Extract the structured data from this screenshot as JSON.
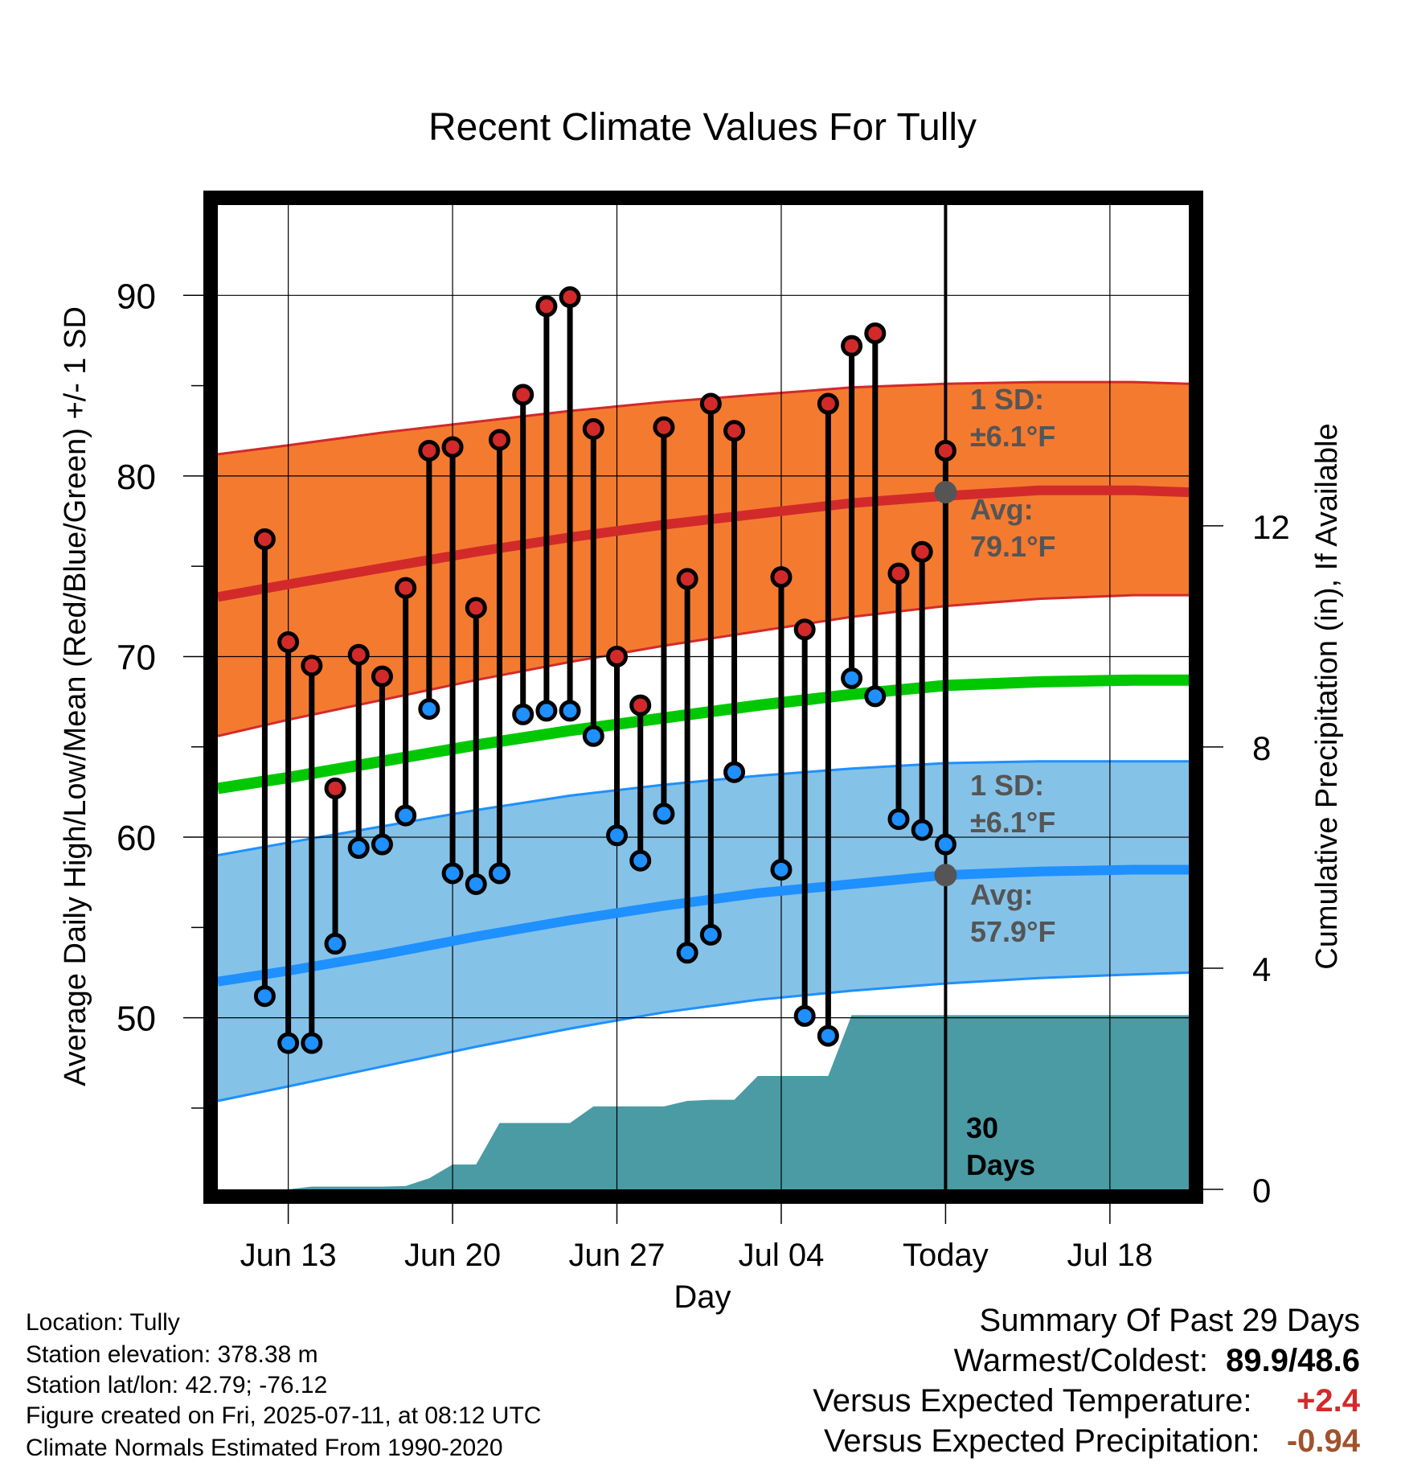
{
  "chart_data": {
    "type": "line",
    "title": "Recent Climate Values For Tully",
    "xlabel": "Day",
    "ylabel": "Average Daily High/Low/Mean (Red/Blue/Green) +/- 1 SD",
    "y2label": "Cumulative Precipitation (in), If Available",
    "ylim": [
      40.5,
      95
    ],
    "y2lim": [
      0,
      17.8
    ],
    "yticks": [
      "50",
      "60",
      "70",
      "80",
      "90"
    ],
    "y2ticks": [
      "0",
      "4",
      "8",
      "12"
    ],
    "xticks": [
      "Jun 13",
      "Jun 20",
      "Jun 27",
      "Jul 04",
      "Today",
      "Jul 18"
    ],
    "grid": true,
    "days": [
      {
        "date": "Jun 12",
        "high": 76.5,
        "low": 51.2
      },
      {
        "date": "Jun 13",
        "high": 70.8,
        "low": 48.6
      },
      {
        "date": "Jun 14",
        "high": 69.5,
        "low": 48.6
      },
      {
        "date": "Jun 15",
        "high": 62.7,
        "low": 54.1
      },
      {
        "date": "Jun 16",
        "high": 70.1,
        "low": 59.4
      },
      {
        "date": "Jun 17",
        "high": 68.9,
        "low": 59.6
      },
      {
        "date": "Jun 18",
        "high": 73.8,
        "low": 61.2
      },
      {
        "date": "Jun 19",
        "high": 81.4,
        "low": 67.1
      },
      {
        "date": "Jun 20",
        "high": 81.6,
        "low": 58.0
      },
      {
        "date": "Jun 21",
        "high": 72.7,
        "low": 57.4
      },
      {
        "date": "Jun 22",
        "high": 82.0,
        "low": 58.0
      },
      {
        "date": "Jun 23",
        "high": 84.5,
        "low": 66.8
      },
      {
        "date": "Jun 24",
        "high": 89.4,
        "low": 67.0
      },
      {
        "date": "Jun 25",
        "high": 89.9,
        "low": 67.0
      },
      {
        "date": "Jun 26",
        "high": 82.6,
        "low": 65.6
      },
      {
        "date": "Jun 27",
        "high": 70.0,
        "low": 60.1
      },
      {
        "date": "Jun 28",
        "high": 67.3,
        "low": 58.7
      },
      {
        "date": "Jun 29",
        "high": 82.7,
        "low": 61.3
      },
      {
        "date": "Jun 30",
        "high": 74.3,
        "low": 53.6
      },
      {
        "date": "Jul 01",
        "high": 84.0,
        "low": 54.6
      },
      {
        "date": "Jul 02",
        "high": 82.5,
        "low": 63.6
      },
      {
        "date": "Jul 04",
        "high": 74.4,
        "low": 58.2
      },
      {
        "date": "Jul 05",
        "high": 71.5,
        "low": 50.1
      },
      {
        "date": "Jul 06",
        "high": 84.0,
        "low": 49.0
      },
      {
        "date": "Jul 07",
        "high": 87.2,
        "low": 68.8
      },
      {
        "date": "Jul 08",
        "high": 87.9,
        "low": 67.8
      },
      {
        "date": "Jul 09",
        "high": 74.6,
        "low": 61.0
      },
      {
        "date": "Jul 10",
        "high": 75.8,
        "low": 60.4
      },
      {
        "date": "Jul 11",
        "high": 81.4,
        "low": 59.6
      }
    ],
    "normals": {
      "dates": [
        "Jun 10",
        "Jun 13",
        "Jun 17",
        "Jun 21",
        "Jun 25",
        "Jun 29",
        "Jul 03",
        "Jul 07",
        "Jul 11",
        "Jul 15",
        "Jul 19",
        "Jul 21"
      ],
      "high_avg": [
        73.3,
        74.0,
        74.9,
        75.8,
        76.6,
        77.3,
        77.9,
        78.5,
        78.9,
        79.2,
        79.2,
        79.1
      ],
      "high_upper": [
        81.2,
        81.7,
        82.4,
        83.0,
        83.6,
        84.1,
        84.5,
        84.9,
        85.1,
        85.2,
        85.2,
        85.1
      ],
      "high_lower": [
        65.6,
        66.5,
        67.6,
        68.7,
        69.7,
        70.6,
        71.4,
        72.2,
        72.8,
        73.2,
        73.4,
        73.4
      ],
      "mean_avg": [
        62.7,
        63.3,
        64.2,
        65.1,
        65.9,
        66.6,
        67.3,
        67.9,
        68.4,
        68.6,
        68.7,
        68.7
      ],
      "low_avg": [
        52.0,
        52.6,
        53.5,
        54.5,
        55.4,
        56.2,
        56.9,
        57.4,
        57.9,
        58.1,
        58.2,
        58.2
      ],
      "low_upper": [
        59.0,
        59.7,
        60.6,
        61.5,
        62.3,
        62.9,
        63.4,
        63.8,
        64.1,
        64.2,
        64.2,
        64.2
      ],
      "low_lower": [
        45.4,
        46.2,
        47.3,
        48.4,
        49.4,
        50.3,
        51.0,
        51.5,
        51.9,
        52.2,
        52.4,
        52.5
      ]
    },
    "precip": {
      "dates": [
        "Jun 10",
        "Jun 13",
        "Jun 14",
        "Jun 15",
        "Jun 16",
        "Jun 17",
        "Jun 18",
        "Jun 19",
        "Jun 20",
        "Jun 21",
        "Jun 22",
        "Jun 23",
        "Jun 24",
        "Jun 25",
        "Jun 26",
        "Jun 27",
        "Jun 28",
        "Jun 29",
        "Jun 30",
        "Jul 01",
        "Jul 02",
        "Jul 03",
        "Jul 04",
        "Jul 05",
        "Jul 06",
        "Jul 07",
        "Jul 08",
        "Jul 21"
      ],
      "cumulative": [
        0.0,
        0.0,
        0.05,
        0.05,
        0.05,
        0.05,
        0.06,
        0.2,
        0.45,
        0.45,
        1.2,
        1.2,
        1.2,
        1.2,
        1.5,
        1.5,
        1.5,
        1.5,
        1.6,
        1.62,
        1.62,
        2.05,
        2.05,
        2.05,
        2.05,
        3.15,
        3.15,
        3.15
      ]
    },
    "colors": {
      "high_band": "#f47a30",
      "high_line": "#d22a2a",
      "mean_line": "#00c800",
      "low_band": "#85c2e8",
      "low_line": "#1e90ff",
      "precip": "#4a9ba4",
      "high_marker": "#d22a2a",
      "low_marker": "#1e90ff",
      "today_marker": "#555555"
    },
    "annotations": {
      "high_sd_label": "1 SD:",
      "high_sd_value": "±6.1°F",
      "high_avg_label": "Avg:",
      "high_avg_value": "79.1°F",
      "low_sd_label": "1 SD:",
      "low_sd_value": "±6.1°F",
      "low_avg_label": "Avg:",
      "low_avg_value": "57.9°F",
      "days_count": "30",
      "days_label": "Days"
    },
    "today_high_avg": 79.1,
    "today_low_avg": 57.9
  },
  "footer": {
    "location": "Location: Tully",
    "elevation": "Station elevation: 378.38 m",
    "latlon": "Station lat/lon: 42.79; -76.12",
    "created": "Figure created on Fri, 2025-07-11, at 08:12 UTC",
    "normals": "Climate Normals Estimated From 1990-2020"
  },
  "summary": {
    "title": "Summary Of Past 29 Days",
    "warm_cold_label": "Warmest/Coldest:",
    "warm_cold_value": "89.9/48.6",
    "temp_label": "Versus Expected Temperature:",
    "temp_value": "+2.4",
    "temp_color": "#d22a2a",
    "precip_label": "Versus Expected Precipitation:",
    "precip_value": "-0.94",
    "precip_color": "#a0522d"
  }
}
